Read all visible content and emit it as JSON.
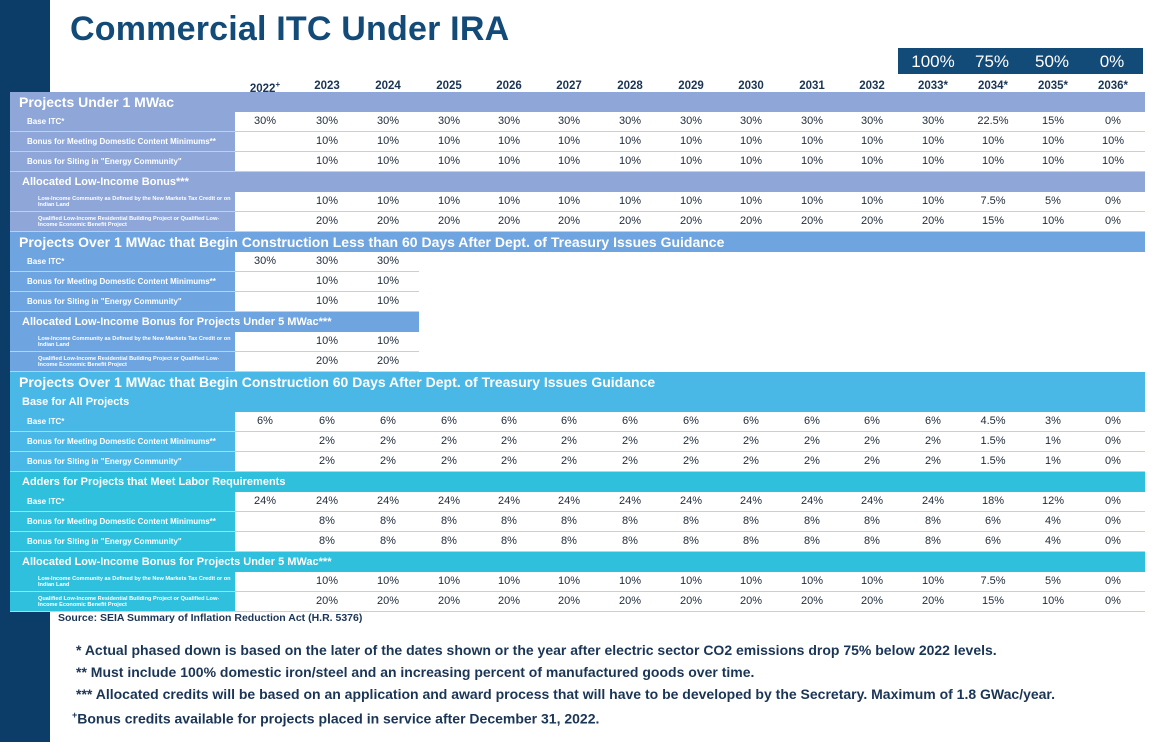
{
  "title": "Commercial ITC Under IRA",
  "phase_down": [
    "100%",
    "75%",
    "50%",
    "0%"
  ],
  "years": [
    "2022",
    "2023",
    "2024",
    "2025",
    "2026",
    "2027",
    "2028",
    "2029",
    "2030",
    "2031",
    "2032",
    "2033*",
    "2034*",
    "2035*",
    "2036*"
  ],
  "year_first_mark": "+",
  "colors": {
    "sidebar": "#0b3d68",
    "title": "#124a78",
    "section1": "#8ea6d8",
    "section2": "#6ea4df",
    "section3": "#4ab8e6",
    "section3b": "#2fc0dd"
  },
  "sections": [
    {
      "id": "s1",
      "header": "Projects Under 1 MWac",
      "rows": [
        {
          "label": "Base ITC*",
          "values": [
            "30%",
            "30%",
            "30%",
            "30%",
            "30%",
            "30%",
            "30%",
            "30%",
            "30%",
            "30%",
            "30%",
            "30%",
            "22.5%",
            "15%",
            "0%"
          ]
        },
        {
          "label": "Bonus for Meeting Domestic Content Minimums**",
          "values": [
            "",
            "10%",
            "10%",
            "10%",
            "10%",
            "10%",
            "10%",
            "10%",
            "10%",
            "10%",
            "10%",
            "10%",
            "10%",
            "10%",
            "10%"
          ]
        },
        {
          "label": "Bonus for Siting in \"Energy Community\"",
          "values": [
            "",
            "10%",
            "10%",
            "10%",
            "10%",
            "10%",
            "10%",
            "10%",
            "10%",
            "10%",
            "10%",
            "10%",
            "10%",
            "10%",
            "10%"
          ]
        }
      ],
      "subheader": "Allocated Low-Income Bonus***",
      "subrows": [
        {
          "label": "Low-Income Community as Defined by the New Markets Tax Credit or on Indian Land",
          "values": [
            "",
            "10%",
            "10%",
            "10%",
            "10%",
            "10%",
            "10%",
            "10%",
            "10%",
            "10%",
            "10%",
            "10%",
            "7.5%",
            "5%",
            "0%"
          ]
        },
        {
          "label": "Qualified Low-Income Residential Building Project or Qualified Low-Income Economic Benefit Project",
          "values": [
            "",
            "20%",
            "20%",
            "20%",
            "20%",
            "20%",
            "20%",
            "20%",
            "20%",
            "20%",
            "20%",
            "20%",
            "15%",
            "10%",
            "0%"
          ]
        }
      ]
    },
    {
      "id": "s2",
      "header": "Projects Over 1 MWac that Begin Construction Less than 60 Days After Dept. of Treasury Issues Guidance",
      "rows": [
        {
          "label": "Base ITC*",
          "values": [
            "30%",
            "30%",
            "30%"
          ]
        },
        {
          "label": "Bonus for Meeting Domestic Content Minimums**",
          "values": [
            "",
            "10%",
            "10%"
          ]
        },
        {
          "label": "Bonus for Siting in \"Energy Community\"",
          "values": [
            "",
            "10%",
            "10%"
          ]
        }
      ],
      "subheader": "Allocated Low-Income Bonus for Projects Under 5 MWac***",
      "subrows": [
        {
          "label": "Low-Income Community as Defined by the New Markets Tax Credit or on Indian Land",
          "values": [
            "",
            "10%",
            "10%"
          ]
        },
        {
          "label": "Qualified Low-Income Residential Building Project or Qualified Low-Income Economic Benefit Project",
          "values": [
            "",
            "20%",
            "20%"
          ]
        }
      ]
    },
    {
      "id": "s3",
      "header": "Projects Over 1 MWac that Begin Construction 60 Days After Dept. of Treasury Issues Guidance",
      "groups": [
        {
          "subheader": "Base for All Projects",
          "rows": [
            {
              "label": "Base ITC*",
              "values": [
                "6%",
                "6%",
                "6%",
                "6%",
                "6%",
                "6%",
                "6%",
                "6%",
                "6%",
                "6%",
                "6%",
                "6%",
                "4.5%",
                "3%",
                "0%"
              ]
            },
            {
              "label": "Bonus for Meeting Domestic Content Minimums**",
              "values": [
                "",
                "2%",
                "2%",
                "2%",
                "2%",
                "2%",
                "2%",
                "2%",
                "2%",
                "2%",
                "2%",
                "2%",
                "1.5%",
                "1%",
                "0%"
              ]
            },
            {
              "label": "Bonus for Siting in \"Energy Community\"",
              "values": [
                "",
                "2%",
                "2%",
                "2%",
                "2%",
                "2%",
                "2%",
                "2%",
                "2%",
                "2%",
                "2%",
                "2%",
                "1.5%",
                "1%",
                "0%"
              ]
            }
          ]
        },
        {
          "subheader": "Adders for Projects that Meet Labor Requirements",
          "rows": [
            {
              "label": "Base ITC*",
              "values": [
                "24%",
                "24%",
                "24%",
                "24%",
                "24%",
                "24%",
                "24%",
                "24%",
                "24%",
                "24%",
                "24%",
                "24%",
                "18%",
                "12%",
                "0%"
              ]
            },
            {
              "label": "Bonus for Meeting Domestic Content Minimums**",
              "values": [
                "",
                "8%",
                "8%",
                "8%",
                "8%",
                "8%",
                "8%",
                "8%",
                "8%",
                "8%",
                "8%",
                "8%",
                "6%",
                "4%",
                "0%"
              ]
            },
            {
              "label": "Bonus for Siting in \"Energy Community\"",
              "values": [
                "",
                "8%",
                "8%",
                "8%",
                "8%",
                "8%",
                "8%",
                "8%",
                "8%",
                "8%",
                "8%",
                "8%",
                "6%",
                "4%",
                "0%"
              ]
            }
          ]
        },
        {
          "subheader": "Allocated Low-Income Bonus for Projects Under 5 MWac***",
          "rows": [
            {
              "label": "Low-Income Community as Defined by the New Markets Tax Credit or on Indian Land",
              "tiny": true,
              "values": [
                "",
                "10%",
                "10%",
                "10%",
                "10%",
                "10%",
                "10%",
                "10%",
                "10%",
                "10%",
                "10%",
                "10%",
                "7.5%",
                "5%",
                "0%"
              ]
            },
            {
              "label": "Qualified Low-Income Residential Building Project or Qualified Low-Income Economic Benefit Project",
              "tiny": true,
              "values": [
                "",
                "20%",
                "20%",
                "20%",
                "20%",
                "20%",
                "20%",
                "20%",
                "20%",
                "20%",
                "20%",
                "20%",
                "15%",
                "10%",
                "0%"
              ]
            }
          ]
        }
      ]
    }
  ],
  "source": "Source: SEIA Summary of Inflation Reduction Act (H.R. 5376)",
  "notes": [
    "* Actual phased down is based on the later of the dates shown or the year after electric sector CO2 emissions drop 75% below 2022 levels.",
    "** Must include 100% domestic iron/steel and an increasing percent of manufactured goods over time.",
    "*** Allocated credits will be based on an application and award process that will have to be developed by the Secretary. Maximum of 1.8 GWac/year."
  ],
  "last_note_mark": "+",
  "last_note": "Bonus credits available for projects placed in service after December 31, 2022."
}
